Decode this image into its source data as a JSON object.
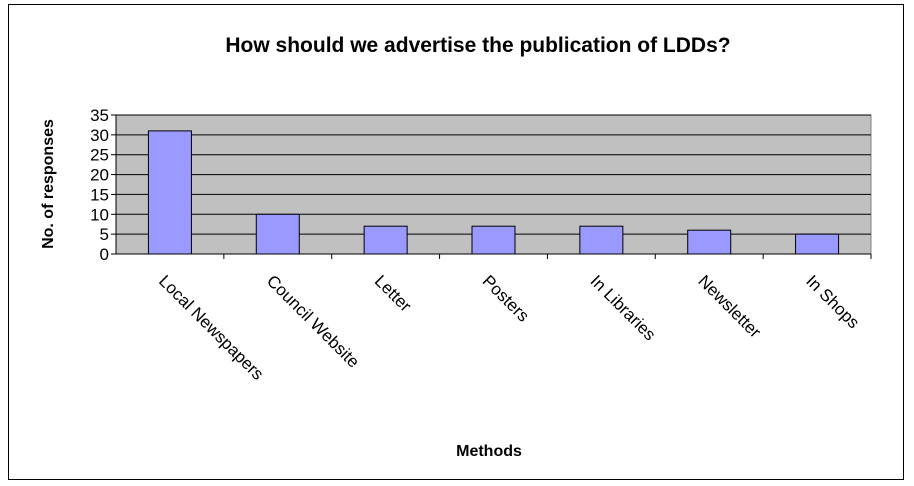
{
  "chart_data": {
    "type": "bar",
    "title": "How should we advertise the publication of LDDs?",
    "xlabel": "Methods",
    "ylabel": "No. of responses",
    "categories": [
      "Local Newspapers",
      "Council Website",
      "Letter",
      "Posters",
      "In Libraries",
      "Newsletter",
      "In Shops"
    ],
    "values": [
      31,
      10,
      7,
      7,
      7,
      6,
      5
    ],
    "ylim": [
      0,
      35
    ],
    "yticks": [
      "0",
      "5",
      "10",
      "15",
      "20",
      "25",
      "30",
      "35"
    ],
    "grid": true,
    "legend": "none",
    "colors": {
      "bar": "#9999ff",
      "plot_bg": "#c0c0c0",
      "bar_stroke": "#000000"
    }
  }
}
